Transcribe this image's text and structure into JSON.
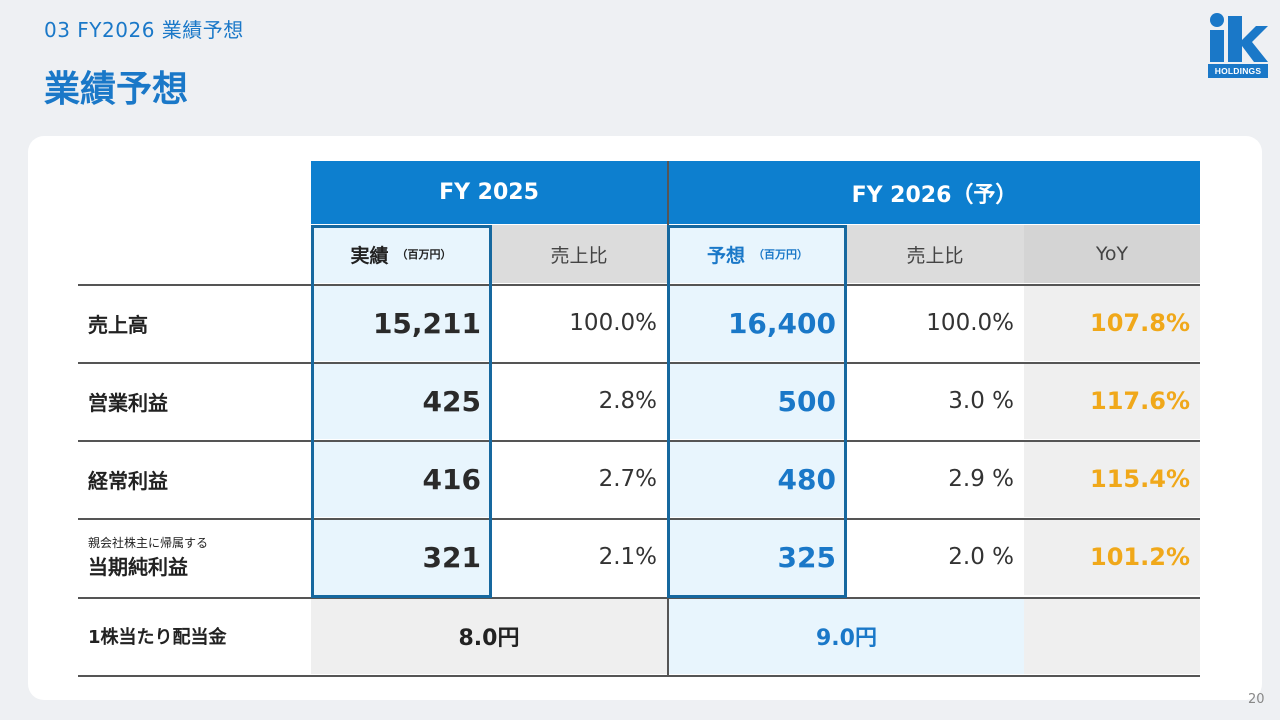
{
  "header": {
    "section": "03  FY2026 業績予想",
    "title": "業績予想"
  },
  "logo": {
    "text": "HOLDINGS",
    "brand_color": "#1a78c8"
  },
  "table": {
    "fy2025_header": "FY 2025",
    "fy2026_header": "FY 2026（予）",
    "sub_headers": {
      "actual": "実績",
      "actual_unit": "（百万円）",
      "ratio_2025": "売上比",
      "forecast": "予想",
      "forecast_unit": "（百万円）",
      "ratio_2026": "売上比",
      "yoy": "YoY"
    },
    "rows": [
      {
        "label": "売上高",
        "sublabel": "",
        "actual": "15,211",
        "actual_ratio": "100.0%",
        "forecast": "16,400",
        "forecast_ratio": "100.0%",
        "yoy": "107.8%"
      },
      {
        "label": "営業利益",
        "sublabel": "",
        "actual": "425",
        "actual_ratio": "2.8%",
        "forecast": "500",
        "forecast_ratio": "3.0 %",
        "yoy": "117.6%"
      },
      {
        "label": "経常利益",
        "sublabel": "",
        "actual": "416",
        "actual_ratio": "2.7%",
        "forecast": "480",
        "forecast_ratio": "2.9 %",
        "yoy": "115.4%"
      },
      {
        "label": "当期純利益",
        "sublabel": "親会社株主に帰属する",
        "actual": "321",
        "actual_ratio": "2.1%",
        "forecast": "325",
        "forecast_ratio": "2.0 %",
        "yoy": "101.2%"
      }
    ],
    "dividend": {
      "label": "1株当たり配当金",
      "fy2025": "8.0円",
      "fy2026": "9.0円"
    }
  },
  "colors": {
    "accent_blue": "#1a78c8",
    "header_blue": "#0d7fcf",
    "yoy_orange": "#f0a81a",
    "box_border": "#16689f"
  },
  "page_number": "20"
}
